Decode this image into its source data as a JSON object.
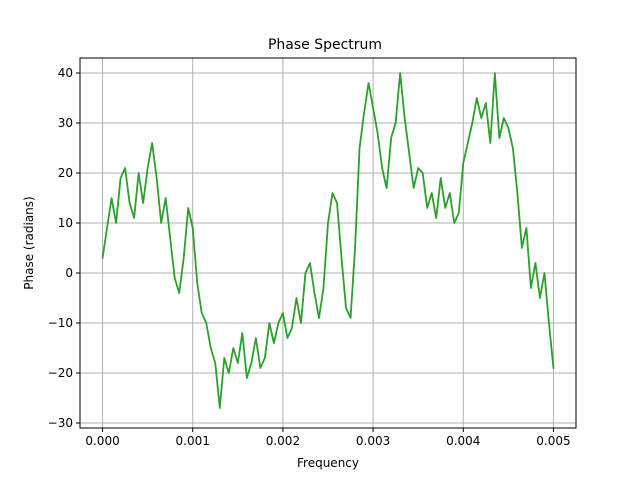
{
  "chart_data": {
    "type": "line",
    "title": "Phase Spectrum",
    "xlabel": "Frequency",
    "ylabel": "Phase (radians)",
    "xlim": [
      -0.00025,
      0.00525
    ],
    "ylim": [
      -31,
      43
    ],
    "xticks": [
      0.0,
      0.001,
      0.002,
      0.003,
      0.004,
      0.005
    ],
    "xtick_labels": [
      "0.000",
      "0.001",
      "0.002",
      "0.003",
      "0.004",
      "0.005"
    ],
    "yticks": [
      -30,
      -20,
      -10,
      0,
      10,
      20,
      30,
      40
    ],
    "ytick_labels": [
      "−30",
      "−20",
      "−10",
      "0",
      "10",
      "20",
      "30",
      "40"
    ],
    "grid": true,
    "legend": "none",
    "series": [
      {
        "color": "#2ca02c",
        "x": [
          0.0,
          5e-05,
          0.0001,
          0.00015,
          0.0002,
          0.00025,
          0.0003,
          0.00035,
          0.0004,
          0.00045,
          0.0005,
          0.00055,
          0.0006,
          0.00065,
          0.0007,
          0.00075,
          0.0008,
          0.00085,
          0.0009,
          0.00095,
          0.001,
          0.00105,
          0.0011,
          0.00115,
          0.0012,
          0.00125,
          0.0013,
          0.00135,
          0.0014,
          0.00145,
          0.0015,
          0.00155,
          0.0016,
          0.00165,
          0.0017,
          0.00175,
          0.0018,
          0.00185,
          0.0019,
          0.00195,
          0.002,
          0.00205,
          0.0021,
          0.00215,
          0.0022,
          0.00225,
          0.0023,
          0.00235,
          0.0024,
          0.00245,
          0.0025,
          0.00255,
          0.0026,
          0.00265,
          0.0027,
          0.00275,
          0.0028,
          0.00285,
          0.0029,
          0.00295,
          0.003,
          0.00305,
          0.0031,
          0.00315,
          0.0032,
          0.00325,
          0.0033,
          0.00335,
          0.0034,
          0.00345,
          0.0035,
          0.00355,
          0.0036,
          0.00365,
          0.0037,
          0.00375,
          0.0038,
          0.00385,
          0.0039,
          0.00395,
          0.004,
          0.00405,
          0.0041,
          0.00415,
          0.0042,
          0.00425,
          0.0043,
          0.00435,
          0.0044,
          0.00445,
          0.0045,
          0.00455,
          0.0046,
          0.00465,
          0.0047,
          0.00475,
          0.0048,
          0.00485,
          0.0049,
          0.00495,
          0.005
        ],
        "y": [
          3,
          9,
          15,
          10,
          19,
          21,
          14,
          11,
          20,
          14,
          21,
          26,
          19,
          10,
          15,
          7,
          -1,
          -4,
          3,
          13,
          9,
          -2,
          -8,
          -10,
          -15,
          -18,
          -27,
          -17,
          -20,
          -15,
          -18,
          -12,
          -21,
          -18,
          -13,
          -19,
          -17,
          -10,
          -14,
          -10,
          -8,
          -13,
          -11,
          -5,
          -10,
          0,
          2,
          -4,
          -9,
          -3,
          10,
          16,
          14,
          3,
          -7,
          -9,
          5,
          25,
          32,
          38,
          33,
          28,
          21,
          17,
          27,
          30,
          40,
          31,
          24,
          17,
          21,
          20,
          13,
          16,
          11,
          19,
          13,
          16,
          10,
          12,
          22,
          26,
          30,
          35,
          31,
          34,
          26,
          40,
          27,
          31,
          29,
          25,
          16,
          5,
          9,
          -3,
          2,
          -5,
          0,
          -10,
          -19
        ]
      }
    ]
  }
}
